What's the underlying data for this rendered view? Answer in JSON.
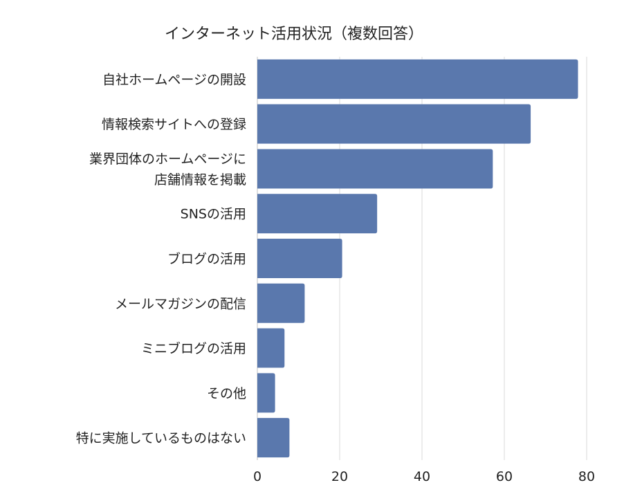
{
  "chart_data": {
    "type": "bar",
    "orientation": "horizontal",
    "title": "インターネット活用状況（複数回答）",
    "categories": [
      [
        "自社ホームページの開設"
      ],
      [
        "情報検索サイトへの登録"
      ],
      [
        "業界団体のホームページに",
        "店舗情報を掲載"
      ],
      [
        "SNSの活用"
      ],
      [
        "ブログの活用"
      ],
      [
        "メールマガジンの配信"
      ],
      [
        "ミニブログの活用"
      ],
      [
        "その他"
      ],
      [
        "特に実施しているものはない"
      ]
    ],
    "values": [
      77.9,
      66.4,
      57.2,
      29.1,
      20.6,
      11.5,
      6.6,
      4.3,
      7.8
    ],
    "xlim": [
      0,
      80
    ],
    "xticks": [
      0,
      20,
      40,
      60,
      80
    ],
    "grid": true,
    "bar_color": "#5a78ad"
  }
}
